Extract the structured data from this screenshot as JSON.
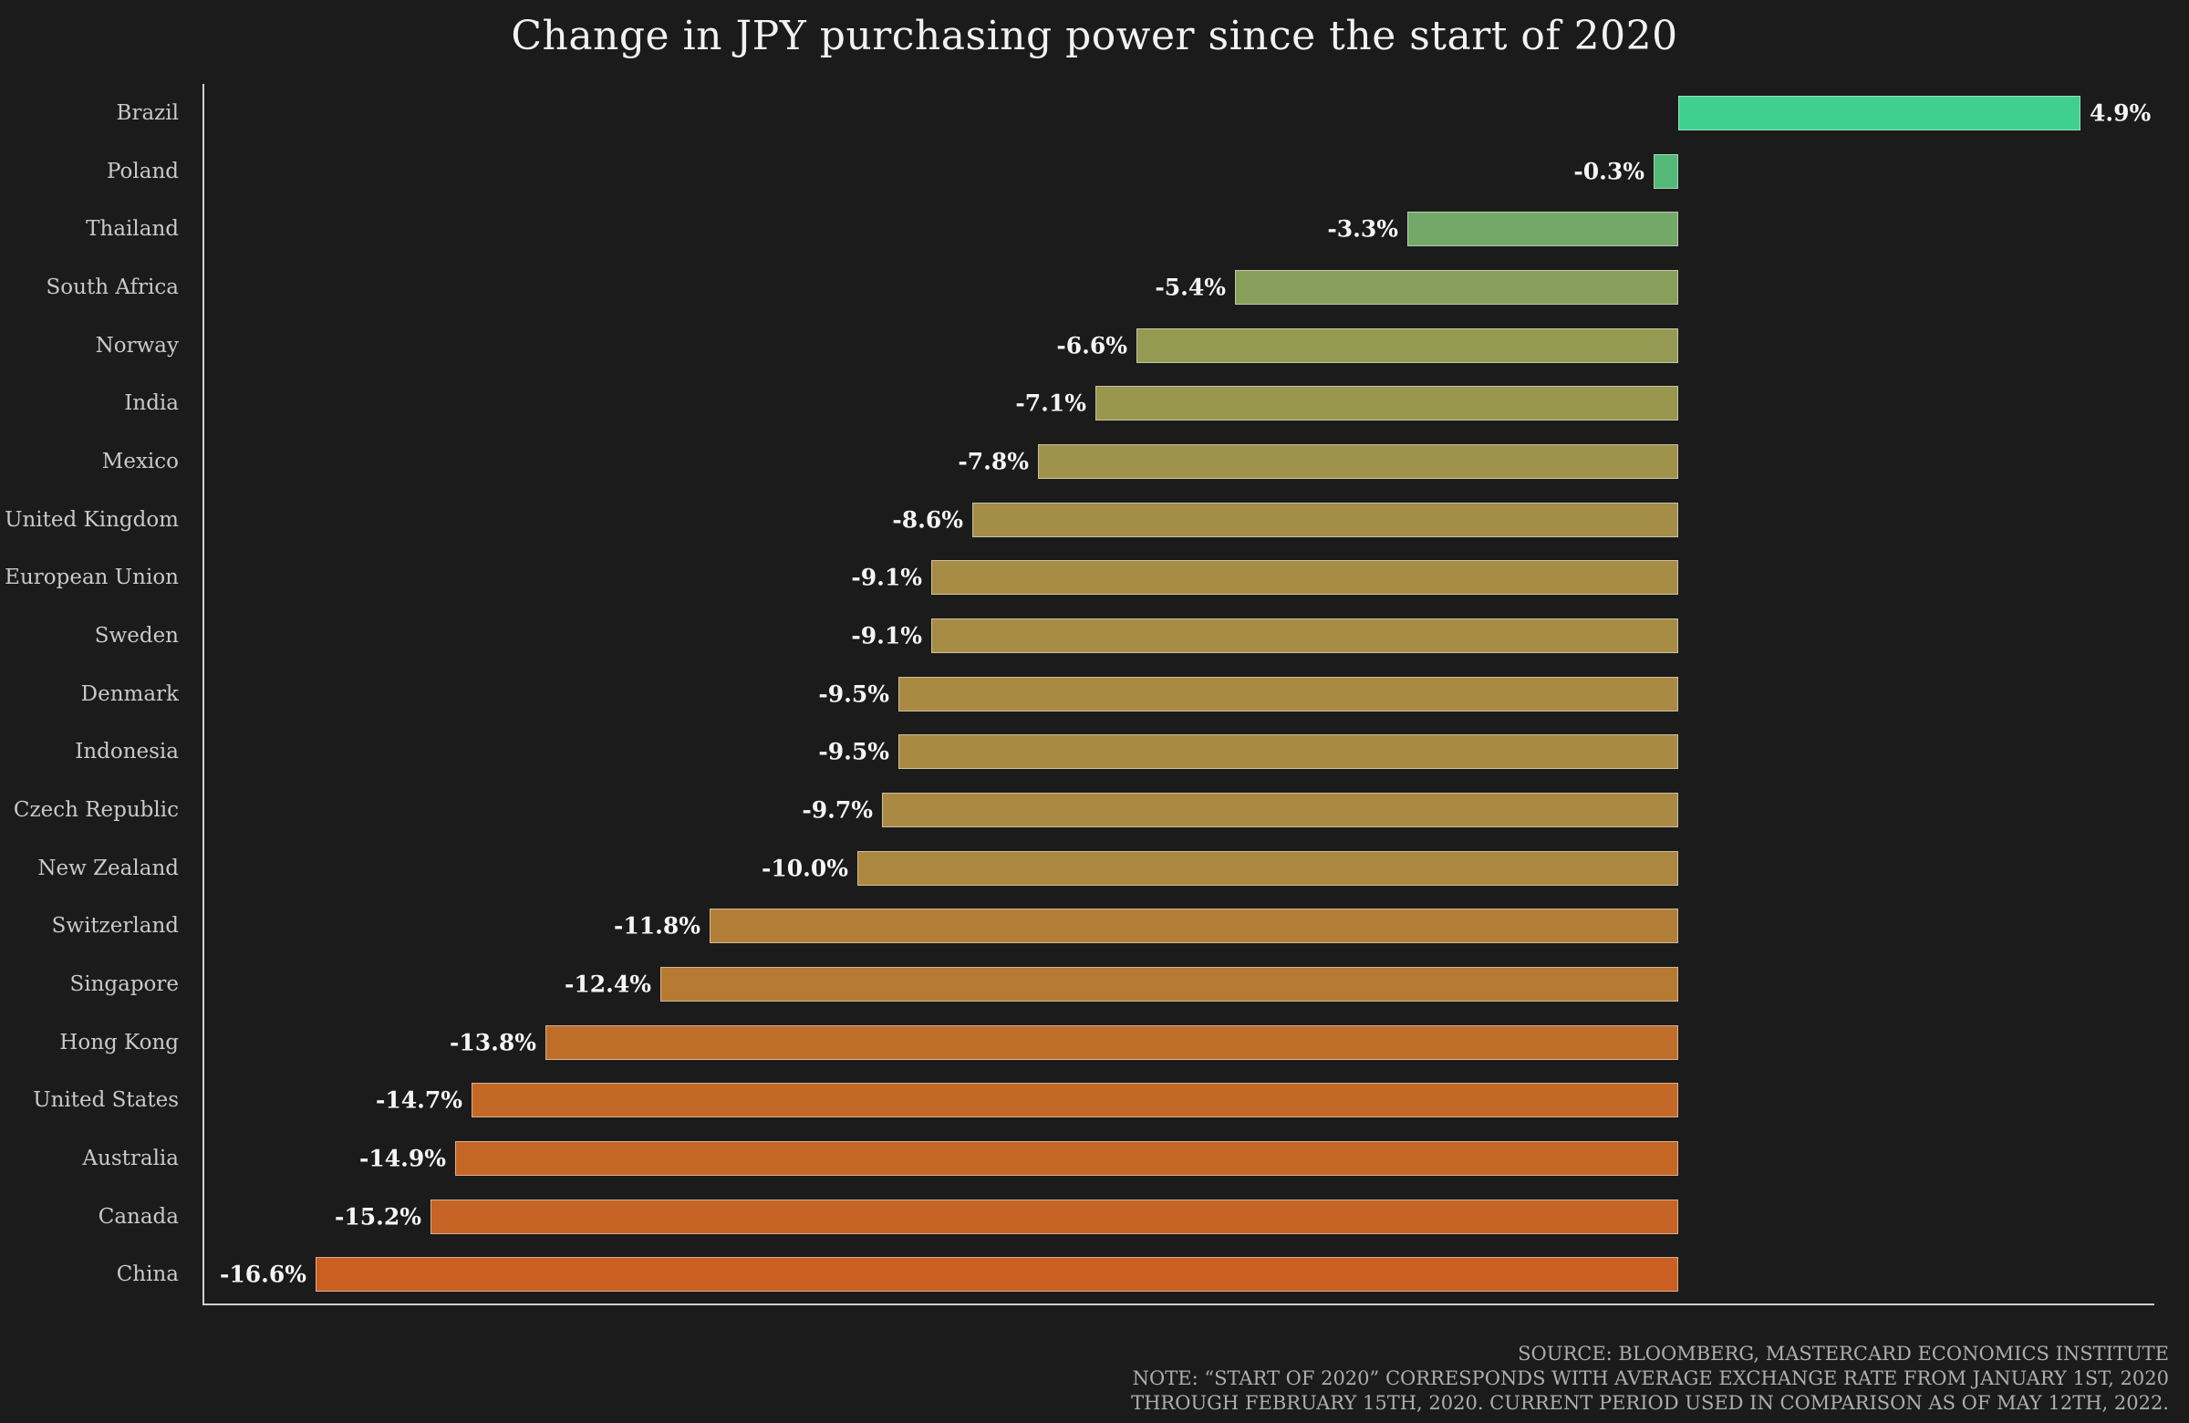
{
  "chart_data": {
    "type": "bar",
    "orientation": "horizontal",
    "title": "Change in JPY purchasing power since the start of 2020",
    "xlabel": "",
    "ylabel": "",
    "xlim": [
      -18,
      6.5
    ],
    "grid": false,
    "legend": "none",
    "background_color": "#1b1b1b",
    "axis_color": "#cfcfcf",
    "categories": [
      "Brazil",
      "Poland",
      "Thailand",
      "South Africa",
      "Norway",
      "India",
      "Mexico",
      "United Kingdom",
      "European Union",
      "Sweden",
      "Denmark",
      "Indonesia",
      "Czech Republic",
      "New Zealand",
      "Switzerland",
      "Singapore",
      "Hong Kong",
      "United States",
      "Australia",
      "Canada",
      "China"
    ],
    "values": [
      4.9,
      -0.3,
      -3.3,
      -5.4,
      -6.6,
      -7.1,
      -7.8,
      -8.6,
      -9.1,
      -9.1,
      -9.5,
      -9.5,
      -9.7,
      -10.0,
      -11.8,
      -12.4,
      -13.8,
      -14.7,
      -14.9,
      -15.2,
      -16.6
    ],
    "value_labels": [
      "4.9%",
      "-0.3%",
      "-3.3%",
      "-5.4%",
      "-6.6%",
      "-7.1%",
      "-7.8%",
      "-8.6%",
      "-9.1%",
      "-9.1%",
      "-9.5%",
      "-9.5%",
      "-9.7%",
      "-10.0%",
      "-11.8%",
      "-12.4%",
      "-13.8%",
      "-14.7%",
      "-14.9%",
      "-15.2%",
      "-16.6%"
    ],
    "bar_colors": [
      "#3fd08f",
      "#53b878",
      "#73a868",
      "#879f5a",
      "#949a52",
      "#99964e",
      "#9f924b",
      "#a48e47",
      "#a78c45",
      "#a78c45",
      "#a98a43",
      "#a98a43",
      "#aa8942",
      "#ac873f",
      "#b37e37",
      "#b77a32",
      "#bf6e29",
      "#c36826",
      "#c46725",
      "#c56424",
      "#c95f20"
    ]
  },
  "footer": {
    "source": "SOURCE: BLOOMBERG, MASTERCARD ECONOMICS INSTITUTE",
    "note_line1": "NOTE: “START OF 2020” CORRESPONDS WITH AVERAGE EXCHANGE RATE FROM JANUARY 1ST, 2020",
    "note_line2": "THROUGH FEBRUARY 15TH, 2020. CURRENT PERIOD USED IN COMPARISON AS OF MAY 12TH, 2022."
  }
}
